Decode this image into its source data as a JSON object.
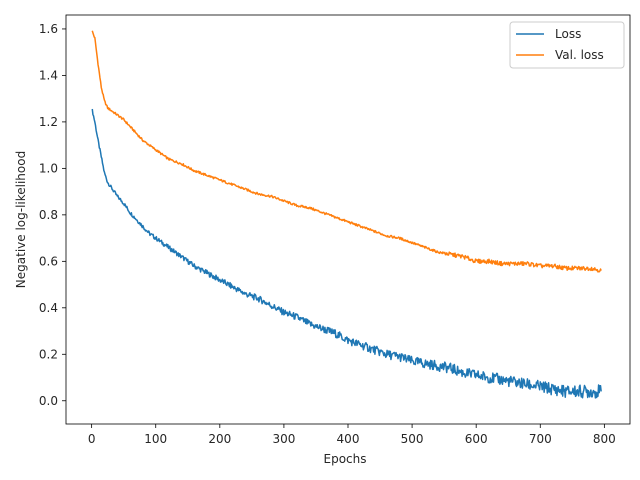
{
  "chart_data": {
    "type": "line",
    "title": "",
    "xlabel": "Epochs",
    "ylabel": "Negative log-likelihood",
    "xlim": [
      -40,
      840
    ],
    "ylim": [
      -0.1,
      1.66
    ],
    "xticks": [
      0,
      100,
      200,
      300,
      400,
      500,
      600,
      700,
      800
    ],
    "xtick_labels": [
      "0",
      "100",
      "200",
      "300",
      "400",
      "500",
      "600",
      "700",
      "800"
    ],
    "yticks": [
      0.0,
      0.2,
      0.4,
      0.6,
      0.8,
      1.0,
      1.2,
      1.4,
      1.6
    ],
    "ytick_labels": [
      "0.0",
      "0.2",
      "0.4",
      "0.6",
      "0.8",
      "1.0",
      "1.2",
      "1.4",
      "1.6"
    ],
    "grid": false,
    "legend_position": "top-right",
    "series": [
      {
        "name": "Loss",
        "color": "#1f77b4",
        "x": [
          1,
          5,
          10,
          15,
          20,
          25,
          30,
          40,
          50,
          60,
          70,
          80,
          90,
          100,
          120,
          140,
          160,
          180,
          200,
          220,
          240,
          260,
          280,
          300,
          320,
          340,
          360,
          380,
          400,
          420,
          440,
          460,
          480,
          500,
          520,
          540,
          560,
          580,
          600,
          620,
          640,
          660,
          680,
          700,
          720,
          740,
          760,
          780,
          795
        ],
        "y": [
          1.25,
          1.2,
          1.12,
          1.05,
          0.98,
          0.94,
          0.92,
          0.88,
          0.85,
          0.81,
          0.78,
          0.75,
          0.72,
          0.7,
          0.66,
          0.62,
          0.58,
          0.55,
          0.52,
          0.49,
          0.46,
          0.44,
          0.41,
          0.38,
          0.36,
          0.33,
          0.31,
          0.29,
          0.26,
          0.24,
          0.22,
          0.2,
          0.19,
          0.17,
          0.16,
          0.15,
          0.14,
          0.12,
          0.11,
          0.1,
          0.09,
          0.08,
          0.07,
          0.06,
          0.05,
          0.04,
          0.04,
          0.04,
          0.04
        ]
      },
      {
        "name": "Val. loss",
        "color": "#ff7f0e",
        "x": [
          1,
          5,
          10,
          15,
          20,
          25,
          30,
          40,
          50,
          60,
          70,
          80,
          90,
          100,
          120,
          140,
          160,
          180,
          200,
          220,
          240,
          260,
          280,
          300,
          320,
          340,
          360,
          380,
          400,
          420,
          440,
          460,
          480,
          500,
          520,
          540,
          560,
          580,
          600,
          620,
          640,
          660,
          680,
          700,
          720,
          740,
          760,
          780,
          795
        ],
        "y": [
          1.59,
          1.56,
          1.45,
          1.35,
          1.29,
          1.26,
          1.25,
          1.23,
          1.21,
          1.18,
          1.15,
          1.12,
          1.1,
          1.08,
          1.04,
          1.02,
          0.99,
          0.97,
          0.95,
          0.93,
          0.91,
          0.89,
          0.88,
          0.86,
          0.84,
          0.83,
          0.81,
          0.79,
          0.77,
          0.75,
          0.73,
          0.71,
          0.7,
          0.68,
          0.66,
          0.64,
          0.63,
          0.62,
          0.6,
          0.6,
          0.59,
          0.59,
          0.59,
          0.58,
          0.58,
          0.57,
          0.57,
          0.57,
          0.56
        ]
      }
    ]
  }
}
